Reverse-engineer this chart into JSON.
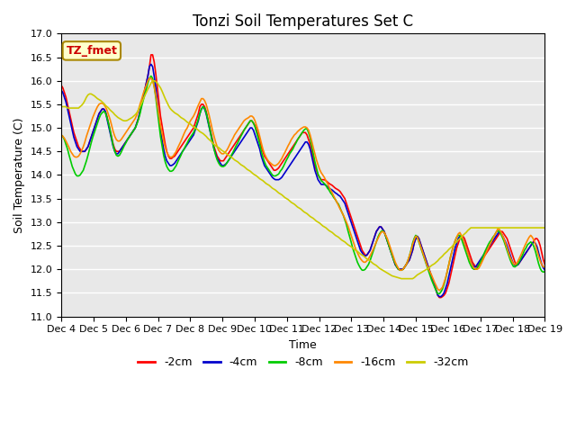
{
  "title": "Tonzi Soil Temperatures Set C",
  "xlabel": "Time",
  "ylabel": "Soil Temperature (C)",
  "ylim": [
    11.0,
    17.0
  ],
  "yticks": [
    11.0,
    11.5,
    12.0,
    12.5,
    13.0,
    13.5,
    14.0,
    14.5,
    15.0,
    15.5,
    16.0,
    16.5,
    17.0
  ],
  "xtick_labels": [
    "Dec 4",
    "Dec 5",
    "Dec 6",
    "Dec 7",
    "Dec 8",
    "Dec 9",
    "Dec 10",
    "Dec 11",
    "Dec 12",
    "Dec 13",
    "Dec 14",
    "Dec 15",
    "Dec 16",
    "Dec 17",
    "Dec 18",
    "Dec 19"
  ],
  "bg_color": "#e8e8e8",
  "label_box_color": "#ffffcc",
  "label_box_text": "TZ_fmet",
  "label_box_text_color": "#cc0000",
  "series_colors": [
    "#ff0000",
    "#0000cc",
    "#00cc00",
    "#ff8800",
    "#cccc00"
  ],
  "series_labels": [
    "-2cm",
    "-4cm",
    "-8cm",
    "-16cm",
    "-32cm"
  ],
  "t2cm": [
    15.9,
    15.85,
    15.75,
    15.65,
    15.5,
    15.35,
    15.2,
    15.05,
    14.9,
    14.8,
    14.7,
    14.6,
    14.55,
    14.5,
    14.5,
    14.5,
    14.55,
    14.6,
    14.7,
    14.8,
    14.9,
    15.0,
    15.1,
    15.2,
    15.3,
    15.35,
    15.4,
    15.4,
    15.35,
    15.25,
    15.1,
    14.95,
    14.8,
    14.65,
    14.55,
    14.5,
    14.5,
    14.5,
    14.55,
    14.6,
    14.65,
    14.7,
    14.75,
    14.8,
    14.85,
    14.9,
    14.95,
    15.0,
    15.1,
    15.2,
    15.35,
    15.5,
    15.65,
    15.8,
    15.95,
    16.1,
    16.3,
    16.55,
    16.55,
    16.4,
    16.15,
    15.85,
    15.55,
    15.25,
    15.05,
    14.85,
    14.65,
    14.5,
    14.4,
    14.35,
    14.35,
    14.38,
    14.4,
    14.45,
    14.5,
    14.55,
    14.6,
    14.65,
    14.7,
    14.75,
    14.8,
    14.85,
    14.9,
    14.95,
    15.0,
    15.1,
    15.2,
    15.3,
    15.45,
    15.5,
    15.5,
    15.45,
    15.35,
    15.2,
    15.05,
    14.9,
    14.75,
    14.6,
    14.5,
    14.4,
    14.35,
    14.3,
    14.3,
    14.3,
    14.35,
    14.4,
    14.45,
    14.5,
    14.55,
    14.6,
    14.65,
    14.7,
    14.75,
    14.8,
    14.85,
    14.9,
    14.95,
    15.0,
    15.05,
    15.1,
    15.15,
    15.15,
    15.1,
    15.05,
    14.95,
    14.85,
    14.75,
    14.6,
    14.5,
    14.4,
    14.35,
    14.3,
    14.25,
    14.2,
    14.15,
    14.1,
    14.1,
    14.12,
    14.15,
    14.2,
    14.25,
    14.3,
    14.35,
    14.4,
    14.45,
    14.5,
    14.55,
    14.6,
    14.65,
    14.7,
    14.75,
    14.8,
    14.85,
    14.9,
    14.9,
    14.9,
    14.85,
    14.75,
    14.65,
    14.5,
    14.35,
    14.2,
    14.1,
    14.0,
    13.95,
    13.9,
    13.9,
    13.9,
    13.88,
    13.85,
    13.82,
    13.8,
    13.78,
    13.75,
    13.72,
    13.7,
    13.68,
    13.65,
    13.6,
    13.55,
    13.5,
    13.4,
    13.3,
    13.2,
    13.1,
    13.0,
    12.9,
    12.8,
    12.7,
    12.6,
    12.5,
    12.4,
    12.35,
    12.3,
    12.3,
    12.35,
    12.4,
    12.5,
    12.6,
    12.7,
    12.8,
    12.85,
    12.9,
    12.9,
    12.85,
    12.8,
    12.7,
    12.6,
    12.5,
    12.4,
    12.3,
    12.2,
    12.1,
    12.05,
    12.0,
    12.0,
    12.0,
    12.0,
    12.05,
    12.1,
    12.15,
    12.2,
    12.3,
    12.4,
    12.55,
    12.65,
    12.7,
    12.65,
    12.55,
    12.45,
    12.35,
    12.25,
    12.15,
    12.05,
    11.95,
    11.85,
    11.75,
    11.65,
    11.55,
    11.45,
    11.4,
    11.4,
    11.42,
    11.45,
    11.5,
    11.6,
    11.7,
    11.85,
    12.0,
    12.15,
    12.3,
    12.45,
    12.55,
    12.65,
    12.7,
    12.7,
    12.65,
    12.55,
    12.45,
    12.35,
    12.25,
    12.15,
    12.1,
    12.05,
    12.05,
    12.1,
    12.15,
    12.2,
    12.25,
    12.3,
    12.35,
    12.4,
    12.45,
    12.5,
    12.55,
    12.6,
    12.65,
    12.7,
    12.75,
    12.8,
    12.8,
    12.75,
    12.7,
    12.65,
    12.55,
    12.45,
    12.35,
    12.25,
    12.15,
    12.1,
    12.1,
    12.15,
    12.2,
    12.25,
    12.3,
    12.35,
    12.4,
    12.45,
    12.5,
    12.55,
    12.6,
    12.65,
    12.65,
    12.6,
    12.5,
    12.35,
    12.2,
    12.1,
    12.05,
    12.0,
    12.0,
    12.05,
    12.1,
    12.15,
    12.2
  ],
  "t4cm": [
    15.8,
    15.75,
    15.65,
    15.55,
    15.4,
    15.25,
    15.1,
    14.95,
    14.8,
    14.7,
    14.6,
    14.55,
    14.5,
    14.5,
    14.5,
    14.5,
    14.55,
    14.6,
    14.7,
    14.8,
    14.9,
    15.0,
    15.1,
    15.2,
    15.3,
    15.35,
    15.4,
    15.4,
    15.35,
    15.2,
    15.05,
    14.9,
    14.75,
    14.6,
    14.5,
    14.45,
    14.45,
    14.5,
    14.55,
    14.6,
    14.65,
    14.7,
    14.75,
    14.8,
    14.85,
    14.9,
    14.95,
    15.0,
    15.1,
    15.2,
    15.35,
    15.5,
    15.65,
    15.8,
    15.95,
    16.1,
    16.3,
    16.35,
    16.3,
    16.1,
    15.85,
    15.55,
    15.25,
    14.95,
    14.75,
    14.55,
    14.4,
    14.3,
    14.25,
    14.2,
    14.2,
    14.22,
    14.25,
    14.3,
    14.35,
    14.4,
    14.45,
    14.5,
    14.55,
    14.6,
    14.65,
    14.7,
    14.75,
    14.8,
    14.85,
    14.95,
    15.05,
    15.15,
    15.3,
    15.4,
    15.45,
    15.4,
    15.3,
    15.15,
    15.0,
    14.85,
    14.7,
    14.55,
    14.45,
    14.35,
    14.3,
    14.25,
    14.2,
    14.2,
    14.22,
    14.25,
    14.3,
    14.35,
    14.4,
    14.45,
    14.5,
    14.55,
    14.6,
    14.65,
    14.7,
    14.75,
    14.8,
    14.85,
    14.9,
    14.95,
    15.0,
    15.0,
    14.95,
    14.85,
    14.75,
    14.65,
    14.55,
    14.4,
    14.3,
    14.2,
    14.15,
    14.1,
    14.05,
    14.0,
    13.95,
    13.92,
    13.9,
    13.9,
    13.9,
    13.92,
    13.95,
    14.0,
    14.05,
    14.1,
    14.15,
    14.2,
    14.25,
    14.3,
    14.35,
    14.4,
    14.45,
    14.5,
    14.55,
    14.6,
    14.65,
    14.7,
    14.7,
    14.65,
    14.55,
    14.4,
    14.25,
    14.1,
    14.0,
    13.9,
    13.85,
    13.8,
    13.8,
    13.8,
    13.78,
    13.75,
    13.72,
    13.7,
    13.68,
    13.65,
    13.62,
    13.6,
    13.57,
    13.55,
    13.5,
    13.45,
    13.4,
    13.3,
    13.2,
    13.1,
    13.0,
    12.9,
    12.8,
    12.7,
    12.6,
    12.5,
    12.4,
    12.35,
    12.3,
    12.28,
    12.3,
    12.35,
    12.4,
    12.5,
    12.6,
    12.7,
    12.8,
    12.85,
    12.9,
    12.9,
    12.85,
    12.8,
    12.7,
    12.6,
    12.5,
    12.4,
    12.3,
    12.2,
    12.1,
    12.05,
    12.0,
    12.0,
    12.0,
    12.0,
    12.05,
    12.1,
    12.15,
    12.2,
    12.3,
    12.4,
    12.55,
    12.65,
    12.7,
    12.65,
    12.55,
    12.45,
    12.35,
    12.25,
    12.15,
    12.05,
    11.95,
    11.85,
    11.75,
    11.65,
    11.55,
    11.45,
    11.42,
    11.42,
    11.45,
    11.5,
    11.6,
    11.7,
    11.85,
    12.0,
    12.15,
    12.3,
    12.45,
    12.55,
    12.65,
    12.7,
    12.7,
    12.65,
    12.55,
    12.45,
    12.35,
    12.25,
    12.15,
    12.1,
    12.05,
    12.05,
    12.1,
    12.15,
    12.2,
    12.25,
    12.3,
    12.35,
    12.4,
    12.45,
    12.5,
    12.55,
    12.6,
    12.65,
    12.7,
    12.75,
    12.8,
    12.78,
    12.72,
    12.65,
    12.58,
    12.5,
    12.4,
    12.3,
    12.2,
    12.12,
    12.08,
    12.08,
    12.1,
    12.15,
    12.2,
    12.25,
    12.3,
    12.35,
    12.4,
    12.45,
    12.5,
    12.55,
    12.58,
    12.55,
    12.48,
    12.35,
    12.22,
    12.1,
    12.03,
    11.98,
    11.98,
    12.0,
    12.05,
    12.1,
    12.15
  ],
  "t8cm": [
    14.85,
    14.82,
    14.75,
    14.65,
    14.55,
    14.42,
    14.3,
    14.18,
    14.1,
    14.02,
    13.98,
    13.98,
    14.0,
    14.05,
    14.1,
    14.2,
    14.3,
    14.42,
    14.55,
    14.68,
    14.8,
    14.9,
    15.0,
    15.1,
    15.2,
    15.28,
    15.32,
    15.35,
    15.32,
    15.22,
    15.1,
    14.95,
    14.78,
    14.62,
    14.5,
    14.42,
    14.4,
    14.42,
    14.48,
    14.55,
    14.62,
    14.68,
    14.75,
    14.8,
    14.85,
    14.9,
    14.95,
    15.0,
    15.08,
    15.18,
    15.3,
    15.45,
    15.58,
    15.7,
    15.82,
    15.95,
    16.05,
    16.1,
    16.05,
    15.88,
    15.65,
    15.38,
    15.1,
    14.82,
    14.62,
    14.42,
    14.28,
    14.18,
    14.12,
    14.08,
    14.08,
    14.1,
    14.15,
    14.2,
    14.28,
    14.35,
    14.42,
    14.5,
    14.55,
    14.62,
    14.68,
    14.75,
    14.8,
    14.85,
    14.9,
    14.98,
    15.08,
    15.18,
    15.3,
    15.4,
    15.45,
    15.42,
    15.32,
    15.18,
    15.02,
    14.85,
    14.7,
    14.55,
    14.42,
    14.32,
    14.25,
    14.2,
    14.18,
    14.18,
    14.2,
    14.25,
    14.3,
    14.35,
    14.42,
    14.48,
    14.55,
    14.62,
    14.68,
    14.75,
    14.82,
    14.88,
    14.95,
    15.0,
    15.05,
    15.1,
    15.15,
    15.15,
    15.1,
    15.02,
    14.9,
    14.78,
    14.65,
    14.5,
    14.38,
    14.28,
    14.2,
    14.15,
    14.1,
    14.05,
    14.0,
    13.98,
    13.98,
    14.0,
    14.02,
    14.08,
    14.12,
    14.18,
    14.25,
    14.32,
    14.38,
    14.45,
    14.5,
    14.55,
    14.62,
    14.68,
    14.75,
    14.8,
    14.85,
    14.9,
    14.95,
    14.98,
    14.98,
    14.9,
    14.78,
    14.62,
    14.45,
    14.28,
    14.15,
    14.02,
    13.95,
    13.88,
    13.85,
    13.82,
    13.78,
    13.72,
    13.68,
    13.62,
    13.58,
    13.52,
    13.48,
    13.42,
    13.38,
    13.3,
    13.22,
    13.15,
    13.05,
    12.95,
    12.82,
    12.7,
    12.58,
    12.45,
    12.35,
    12.25,
    12.15,
    12.08,
    12.02,
    11.98,
    11.98,
    12.0,
    12.05,
    12.1,
    12.18,
    12.28,
    12.38,
    12.48,
    12.58,
    12.68,
    12.75,
    12.8,
    12.82,
    12.78,
    12.7,
    12.6,
    12.5,
    12.4,
    12.3,
    12.2,
    12.12,
    12.05,
    12.0,
    11.98,
    11.98,
    12.0,
    12.05,
    12.1,
    12.18,
    12.28,
    12.4,
    12.55,
    12.65,
    12.72,
    12.68,
    12.58,
    12.48,
    12.38,
    12.28,
    12.18,
    12.08,
    11.98,
    11.88,
    11.78,
    11.7,
    11.62,
    11.55,
    11.48,
    11.48,
    11.52,
    11.58,
    11.68,
    11.8,
    11.95,
    12.1,
    12.25,
    12.38,
    12.5,
    12.6,
    12.68,
    12.72,
    12.72,
    12.65,
    12.55,
    12.45,
    12.35,
    12.25,
    12.15,
    12.08,
    12.02,
    12.0,
    12.0,
    12.02,
    12.08,
    12.15,
    12.22,
    12.3,
    12.38,
    12.45,
    12.52,
    12.58,
    12.62,
    12.68,
    12.72,
    12.78,
    12.82,
    12.8,
    12.75,
    12.68,
    12.6,
    12.5,
    12.4,
    12.3,
    12.2,
    12.12,
    12.06,
    12.05,
    12.08,
    12.12,
    12.18,
    12.25,
    12.32,
    12.4,
    12.45,
    12.52,
    12.55,
    12.58,
    12.55,
    12.48,
    12.38,
    12.25,
    12.12,
    12.02,
    11.96,
    11.94,
    11.95,
    11.98,
    12.02,
    12.08,
    12.12
  ],
  "t16cm": [
    14.85,
    14.82,
    14.78,
    14.72,
    14.65,
    14.58,
    14.5,
    14.45,
    14.4,
    14.38,
    14.38,
    14.4,
    14.45,
    14.52,
    14.6,
    14.7,
    14.82,
    14.92,
    15.02,
    15.12,
    15.22,
    15.3,
    15.38,
    15.45,
    15.5,
    15.52,
    15.52,
    15.5,
    15.45,
    15.38,
    15.28,
    15.18,
    15.05,
    14.92,
    14.82,
    14.75,
    14.72,
    14.72,
    14.75,
    14.8,
    14.85,
    14.9,
    14.95,
    15.0,
    15.05,
    15.1,
    15.15,
    15.2,
    15.28,
    15.38,
    15.5,
    15.6,
    15.72,
    15.82,
    15.9,
    16.0,
    16.05,
    16.05,
    16.0,
    15.88,
    15.7,
    15.5,
    15.28,
    15.05,
    14.88,
    14.72,
    14.58,
    14.48,
    14.42,
    14.38,
    14.38,
    14.4,
    14.45,
    14.5,
    14.58,
    14.65,
    14.72,
    14.8,
    14.88,
    14.95,
    15.0,
    15.08,
    15.15,
    15.2,
    15.25,
    15.32,
    15.4,
    15.48,
    15.55,
    15.62,
    15.62,
    15.58,
    15.5,
    15.38,
    15.25,
    15.1,
    14.95,
    14.82,
    14.7,
    14.6,
    14.52,
    14.48,
    14.45,
    14.45,
    14.48,
    14.52,
    14.58,
    14.65,
    14.72,
    14.78,
    14.85,
    14.9,
    14.95,
    15.0,
    15.05,
    15.1,
    15.15,
    15.18,
    15.2,
    15.22,
    15.25,
    15.25,
    15.22,
    15.15,
    15.05,
    14.95,
    14.82,
    14.68,
    14.55,
    14.45,
    14.38,
    14.32,
    14.28,
    14.25,
    14.22,
    14.2,
    14.2,
    14.22,
    14.25,
    14.3,
    14.35,
    14.42,
    14.48,
    14.55,
    14.62,
    14.68,
    14.75,
    14.8,
    14.85,
    14.88,
    14.92,
    14.95,
    14.98,
    15.0,
    15.02,
    15.02,
    15.0,
    14.95,
    14.85,
    14.72,
    14.58,
    14.45,
    14.32,
    14.22,
    14.12,
    14.05,
    14.0,
    13.95,
    13.88,
    13.82,
    13.75,
    13.68,
    13.62,
    13.55,
    13.48,
    13.42,
    13.35,
    13.28,
    13.22,
    13.15,
    13.08,
    13.0,
    12.92,
    12.82,
    12.72,
    12.62,
    12.52,
    12.42,
    12.35,
    12.28,
    12.22,
    12.18,
    12.15,
    12.15,
    12.18,
    12.22,
    12.28,
    12.35,
    12.42,
    12.5,
    12.58,
    12.65,
    12.72,
    12.78,
    12.8,
    12.78,
    12.72,
    12.65,
    12.55,
    12.45,
    12.35,
    12.25,
    12.15,
    12.08,
    12.02,
    11.98,
    11.98,
    12.0,
    12.05,
    12.1,
    12.18,
    12.28,
    12.38,
    12.52,
    12.62,
    12.7,
    12.68,
    12.6,
    12.5,
    12.4,
    12.3,
    12.2,
    12.1,
    12.02,
    11.95,
    11.88,
    11.8,
    11.72,
    11.65,
    11.58,
    11.55,
    11.58,
    11.62,
    11.72,
    11.82,
    11.95,
    12.1,
    12.25,
    12.38,
    12.5,
    12.6,
    12.68,
    12.75,
    12.78,
    12.72,
    12.65,
    12.55,
    12.45,
    12.35,
    12.25,
    12.15,
    12.08,
    12.02,
    12.0,
    12.0,
    12.02,
    12.08,
    12.15,
    12.22,
    12.3,
    12.38,
    12.45,
    12.52,
    12.58,
    12.65,
    12.72,
    12.78,
    12.85,
    12.85,
    12.8,
    12.72,
    12.65,
    12.55,
    12.45,
    12.35,
    12.25,
    12.18,
    12.12,
    12.1,
    12.12,
    12.18,
    12.25,
    12.32,
    12.4,
    12.48,
    12.55,
    12.62,
    12.68,
    12.72,
    12.68,
    12.62,
    12.52,
    12.4,
    12.28,
    12.18,
    12.1,
    12.05,
    12.05,
    12.08,
    12.12,
    12.18,
    12.25
  ],
  "t32cm": [
    15.45,
    15.45,
    15.45,
    15.45,
    15.42,
    15.42,
    15.42,
    15.42,
    15.42,
    15.42,
    15.42,
    15.42,
    15.45,
    15.48,
    15.52,
    15.58,
    15.65,
    15.7,
    15.72,
    15.72,
    15.7,
    15.68,
    15.65,
    15.62,
    15.6,
    15.58,
    15.55,
    15.52,
    15.48,
    15.45,
    15.42,
    15.38,
    15.35,
    15.32,
    15.28,
    15.25,
    15.22,
    15.2,
    15.18,
    15.16,
    15.15,
    15.15,
    15.16,
    15.18,
    15.2,
    15.22,
    15.25,
    15.28,
    15.32,
    15.38,
    15.45,
    15.52,
    15.6,
    15.68,
    15.75,
    15.82,
    15.88,
    15.95,
    16.0,
    16.0,
    15.98,
    15.95,
    15.9,
    15.85,
    15.78,
    15.7,
    15.62,
    15.55,
    15.48,
    15.42,
    15.38,
    15.35,
    15.32,
    15.3,
    15.28,
    15.25,
    15.22,
    15.2,
    15.18,
    15.15,
    15.12,
    15.1,
    15.08,
    15.05,
    15.02,
    15.0,
    14.98,
    14.95,
    14.92,
    14.9,
    14.88,
    14.85,
    14.82,
    14.78,
    14.75,
    14.72,
    14.68,
    14.65,
    14.62,
    14.6,
    14.58,
    14.55,
    14.52,
    14.5,
    14.48,
    14.45,
    14.42,
    14.4,
    14.38,
    14.35,
    14.32,
    14.3,
    14.28,
    14.25,
    14.22,
    14.2,
    14.18,
    14.15,
    14.12,
    14.1,
    14.08,
    14.05,
    14.02,
    14.0,
    13.98,
    13.95,
    13.92,
    13.9,
    13.88,
    13.85,
    13.82,
    13.8,
    13.78,
    13.75,
    13.72,
    13.7,
    13.68,
    13.65,
    13.62,
    13.6,
    13.58,
    13.55,
    13.52,
    13.5,
    13.48,
    13.45,
    13.42,
    13.4,
    13.38,
    13.35,
    13.32,
    13.3,
    13.28,
    13.25,
    13.22,
    13.2,
    13.18,
    13.15,
    13.12,
    13.1,
    13.08,
    13.05,
    13.02,
    13.0,
    12.98,
    12.95,
    12.92,
    12.9,
    12.88,
    12.85,
    12.82,
    12.8,
    12.78,
    12.75,
    12.72,
    12.7,
    12.68,
    12.65,
    12.62,
    12.6,
    12.58,
    12.55,
    12.52,
    12.5,
    12.48,
    12.45,
    12.42,
    12.4,
    12.38,
    12.35,
    12.32,
    12.3,
    12.28,
    12.25,
    12.22,
    12.2,
    12.18,
    12.15,
    12.12,
    12.1,
    12.08,
    12.05,
    12.02,
    12.0,
    11.98,
    11.96,
    11.94,
    11.92,
    11.9,
    11.88,
    11.86,
    11.85,
    11.84,
    11.83,
    11.82,
    11.81,
    11.8,
    11.8,
    11.8,
    11.8,
    11.8,
    11.8,
    11.8,
    11.8,
    11.82,
    11.85,
    11.88,
    11.9,
    11.92,
    11.94,
    11.96,
    11.98,
    12.0,
    12.02,
    12.05,
    12.08,
    12.1,
    12.12,
    12.15,
    12.18,
    12.22,
    12.25,
    12.28,
    12.32,
    12.35,
    12.38,
    12.42,
    12.45,
    12.48,
    12.52,
    12.55,
    12.58,
    12.62,
    12.65,
    12.68,
    12.72,
    12.75,
    12.78,
    12.82,
    12.85,
    12.88,
    12.88,
    12.88,
    12.88,
    12.88,
    12.88,
    12.88,
    12.88,
    12.88,
    12.88,
    12.88,
    12.88,
    12.88,
    12.88,
    12.88,
    12.88,
    12.88,
    12.88,
    12.88,
    12.88,
    12.88,
    12.88,
    12.88,
    12.88,
    12.88,
    12.88,
    12.88,
    12.88,
    12.88,
    12.88,
    12.88,
    12.88,
    12.88,
    12.88,
    12.88,
    12.88,
    12.88,
    12.88,
    12.88,
    12.88,
    12.88,
    12.88,
    12.88,
    12.88,
    12.88,
    12.88,
    12.88,
    12.88
  ]
}
